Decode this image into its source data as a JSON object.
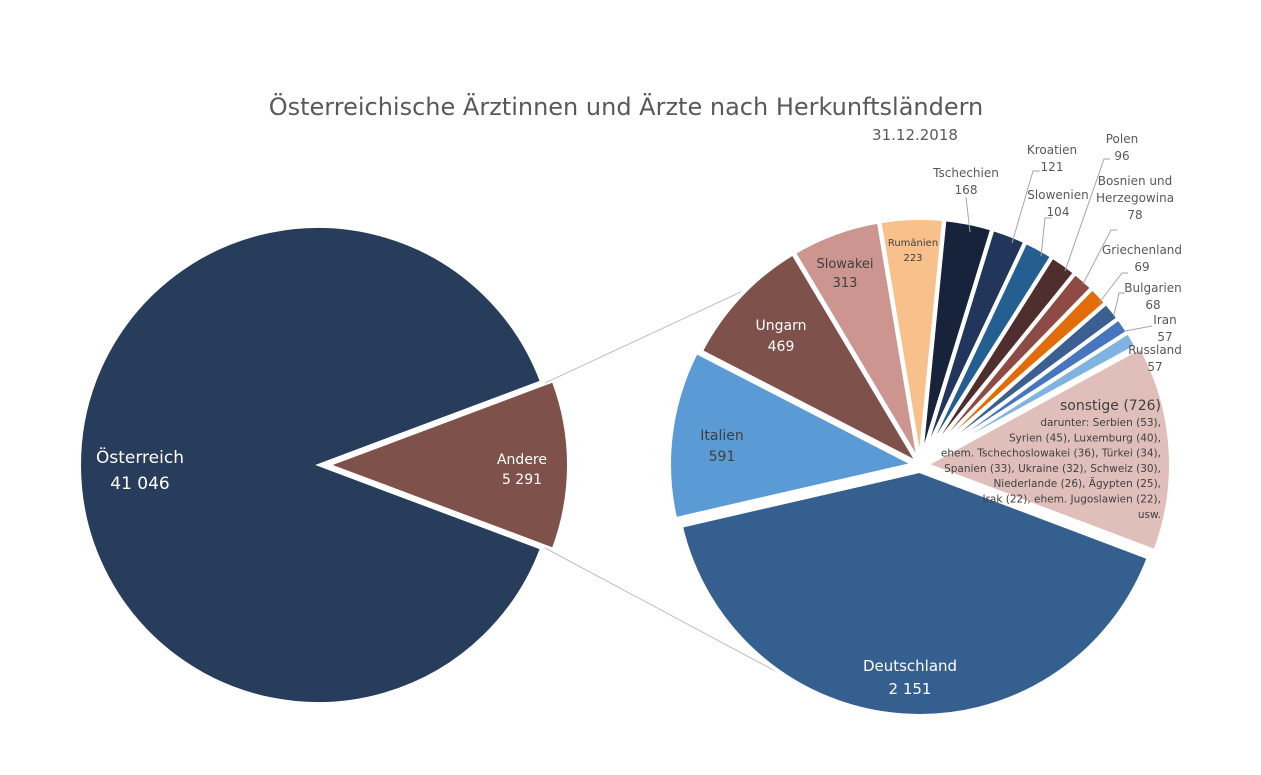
{
  "chart_data": {
    "type": "pie-of-pie",
    "title": "Österreichische Ärztinnen und Ärzte nach Herkunftsländern",
    "subtitle": "31.12.2018",
    "main_pie": [
      {
        "label": "Österreich",
        "value": 41046,
        "value_label": "41 046",
        "color": "#283c5c"
      },
      {
        "label": "Andere",
        "value": 5291,
        "value_label": "5 291",
        "color": "#7f514b"
      }
    ],
    "secondary_pie": [
      {
        "label": "Deutschland",
        "value": 2151,
        "value_label": "2 151",
        "color": "#355f8f"
      },
      {
        "label": "Italien",
        "value": 591,
        "value_label": "591",
        "color": "#5b9bd5"
      },
      {
        "label": "Ungarn",
        "value": 469,
        "value_label": "469",
        "color": "#7f514b"
      },
      {
        "label": "Slowakei",
        "value": 313,
        "value_label": "313",
        "color": "#cc9590"
      },
      {
        "label": "Rumänien",
        "value": 223,
        "value_label": "223",
        "color": "#f8c08a"
      },
      {
        "label": "Tschechien",
        "value": 168,
        "value_label": "168",
        "color": "#17233a"
      },
      {
        "label": "Kroatien",
        "value": 121,
        "value_label": "121",
        "color": "#21365a"
      },
      {
        "label": "Slowenien",
        "value": 104,
        "value_label": "104",
        "color": "#255e91"
      },
      {
        "label": "Polen",
        "value": 96,
        "value_label": "96",
        "color": "#4f2f2d"
      },
      {
        "label": "Bosnien und Herzegowina",
        "value": 78,
        "value_label": "78",
        "color": "#8e4a45"
      },
      {
        "label": "Griechenland",
        "value": 69,
        "value_label": "69",
        "color": "#e36c0a"
      },
      {
        "label": "Bulgarien",
        "value": 68,
        "value_label": "68",
        "color": "#3c5f91"
      },
      {
        "label": "Iran",
        "value": 57,
        "value_label": "57",
        "color": "#4775bf"
      },
      {
        "label": "Russland",
        "value": 57,
        "value_label": "57",
        "color": "#7fb3e0"
      },
      {
        "label": "sonstige (726)",
        "value": 726,
        "value_label": "",
        "color": "#e0bfbb",
        "detail_lines": [
          "darunter: Serbien (53),",
          "Syrien (45), Luxemburg (40),",
          "ehem. Tschechoslowakei (36), Türkei (34),",
          "Spanien (33), Ukraine (32), Schweiz (30),",
          "Niederlande (26), Ägypten (25),",
          "Irak (22), ehem. Jugoslawien (22),",
          "usw."
        ]
      }
    ]
  }
}
